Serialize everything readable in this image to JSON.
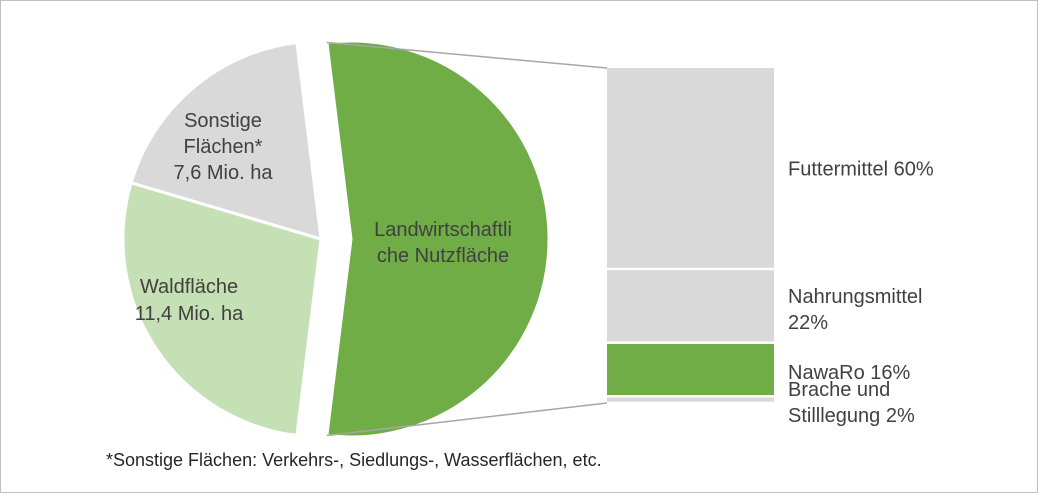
{
  "chart_data": {
    "type": "pie",
    "subtype": "bar-of-pie",
    "main": {
      "slices": [
        {
          "name": "Landwirtschaftliche Nutzfläche",
          "label_lines": [
            "Landwirtschaftli",
            "che Nutzfläche"
          ],
          "value": null,
          "color": "#70ad47",
          "exploded": true,
          "text_color": "#404040"
        },
        {
          "name": "Waldfläche",
          "label_lines": [
            "Waldfläche",
            "11,4 Mio. ha"
          ],
          "value": 11.4,
          "unit": "Mio. ha",
          "color": "#c5e0b4",
          "text_color": "#404040"
        },
        {
          "name": "Sonstige Flächen*",
          "label_lines": [
            "Sonstige",
            "Flächen*",
            "7,6 Mio. ha"
          ],
          "value": 7.6,
          "unit": "Mio. ha",
          "color": "#d9d9d9",
          "text_color": "#404040"
        }
      ]
    },
    "breakdown": {
      "of": "Landwirtschaftliche Nutzfläche",
      "segments": [
        {
          "name": "Futtermittel",
          "value": 60,
          "label_lines": [
            "Futtermittel 60%"
          ],
          "color": "#d9d9d9"
        },
        {
          "name": "Nahrungsmittel",
          "value": 22,
          "label_lines": [
            "Nahrungsmittel",
            "22%"
          ],
          "color": "#d9d9d9"
        },
        {
          "name": "NawaRo",
          "value": 16,
          "label_lines": [
            "NawaRo 16%"
          ],
          "color": "#70ad47"
        },
        {
          "name": "Brache und Stilllegung",
          "value": 2,
          "label_lines": [
            "Brache und",
            "Stilllegung 2%"
          ],
          "color": "#d9d9d9"
        }
      ]
    },
    "connector_color": "#a6a6a6"
  },
  "footnote": "*Sonstige Flächen: Verkehrs-, Siedlungs-, Wasserflächen, etc."
}
